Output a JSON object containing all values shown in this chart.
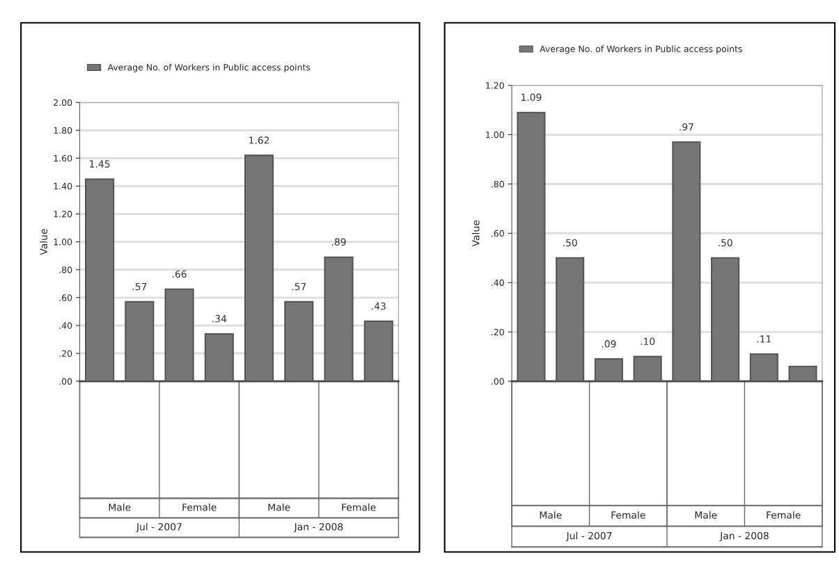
{
  "chart_data": [
    {
      "type": "bar",
      "ylabel": "Value",
      "categories": [
        null,
        null,
        null,
        null,
        null,
        null,
        null,
        null
      ],
      "series": [
        {
          "name": "Average No. of Workers in Public access points",
          "color": "#767676",
          "values": [
            1.45,
            0.57,
            0.66,
            0.34,
            1.62,
            0.57,
            0.89,
            0.43
          ],
          "value_labels": [
            "1.45",
            ".57",
            ".66",
            ".34",
            "1.62",
            ".57",
            ".89",
            ".43"
          ]
        }
      ],
      "ylim": [
        0,
        2
      ],
      "yticks": [
        {
          "value": 0,
          "label": ".00"
        },
        {
          "value": 0.2,
          "label": ".20"
        },
        {
          "value": 0.4,
          "label": ".40"
        },
        {
          "value": 0.6,
          "label": ".60"
        },
        {
          "value": 0.8,
          "label": ".80"
        },
        {
          "value": 1.0,
          "label": "1.00"
        },
        {
          "value": 1.2,
          "label": "1.20"
        },
        {
          "value": 1.4,
          "label": "1.40"
        },
        {
          "value": 1.6,
          "label": "1.60"
        },
        {
          "value": 1.8,
          "label": "1.80"
        },
        {
          "value": 2.0,
          "label": "2.00"
        }
      ],
      "grid": "y",
      "legend": "top left",
      "annotations": [
        "Male",
        "Female",
        "Male",
        "Female",
        "Jul - 2007",
        "Jan - 2008"
      ]
    },
    {
      "type": "bar",
      "ylabel": "Value",
      "categories": [
        null,
        null,
        null,
        null,
        null,
        null,
        null,
        null
      ],
      "series": [
        {
          "name": "Average No. of Workers in Public access points",
          "color": "#767676",
          "values": [
            1.09,
            0.5,
            0.09,
            0.1,
            0.97,
            0.5,
            0.11,
            0.06
          ],
          "value_labels": [
            "1.09",
            ".50",
            ".09",
            ".10",
            ".97",
            ".50",
            ".11",
            null
          ]
        }
      ],
      "ylim": [
        0,
        1.2
      ],
      "yticks": [
        {
          "value": 0,
          "label": ".00"
        },
        {
          "value": 0.2,
          "label": ".20"
        },
        {
          "value": 0.4,
          "label": ".40"
        },
        {
          "value": 0.6,
          "label": ".60"
        },
        {
          "value": 0.8,
          "label": ".80"
        },
        {
          "value": 1.0,
          "label": "1.00"
        },
        {
          "value": 1.2,
          "label": "1.20"
        }
      ],
      "grid": "y",
      "legend": "top left",
      "annotations": [
        "Male",
        "Female",
        "Male",
        "Female",
        "Jul - 2007",
        "Jan - 2008"
      ]
    }
  ]
}
